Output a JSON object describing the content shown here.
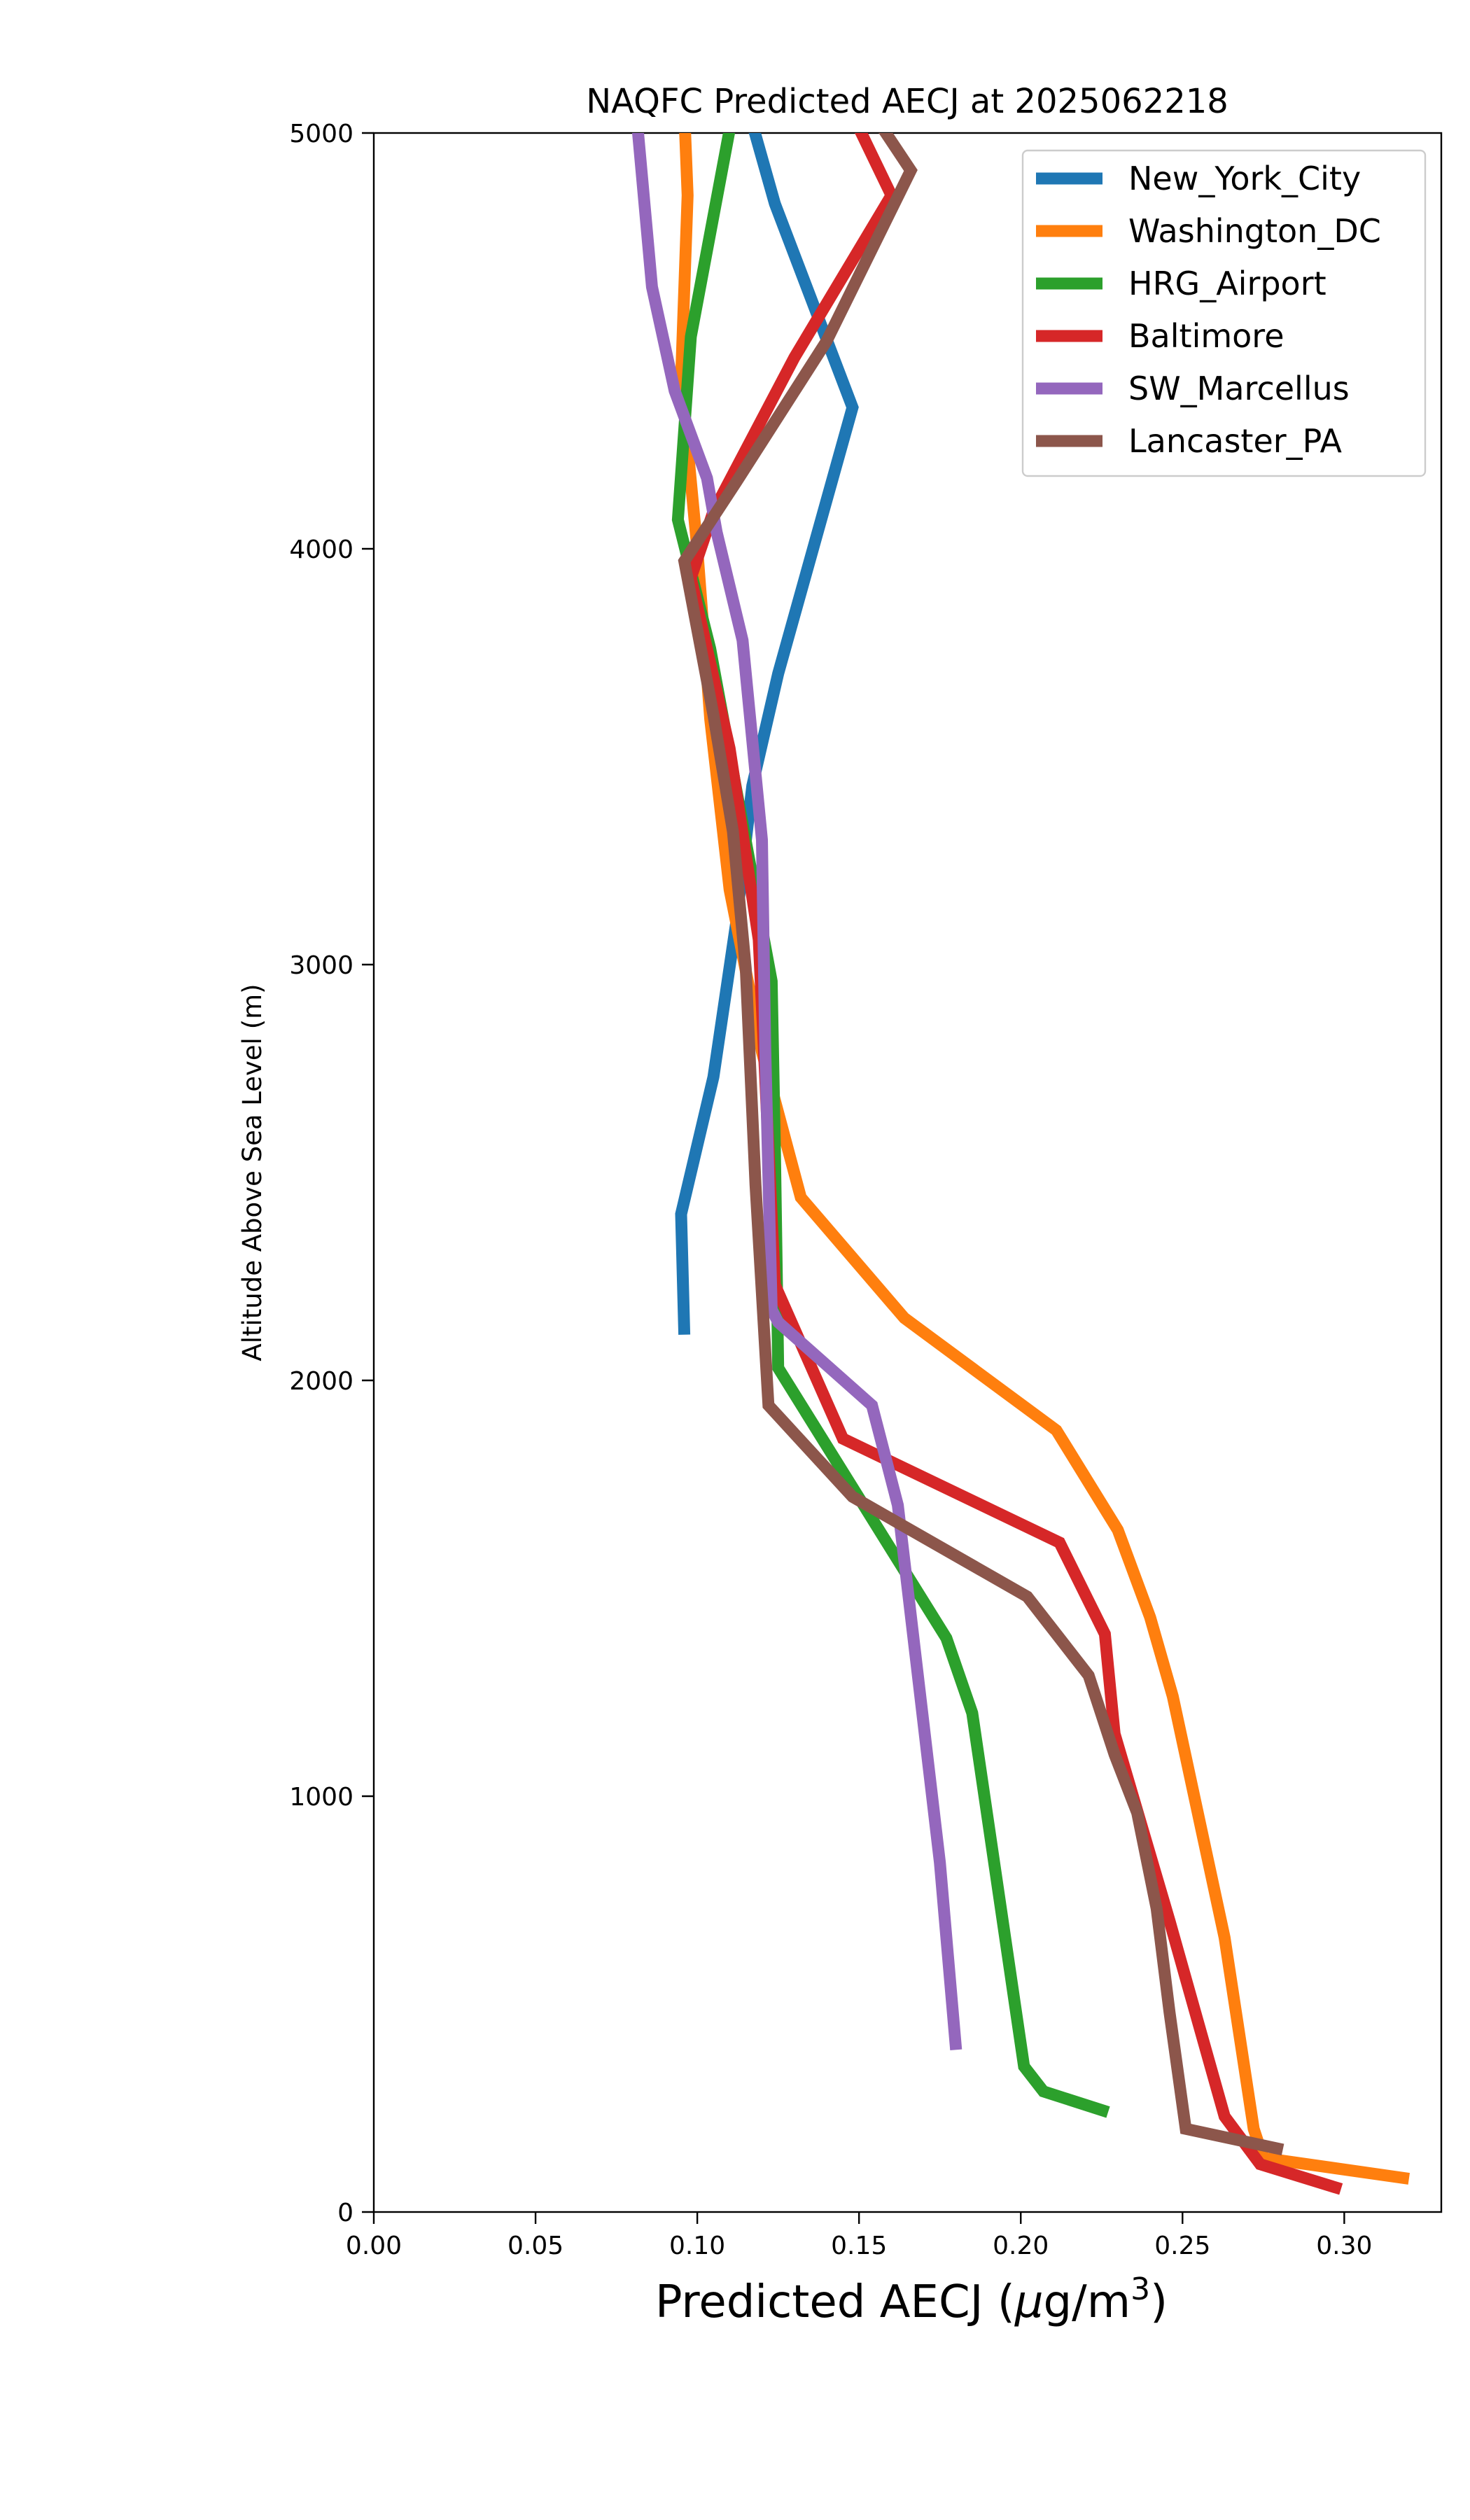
{
  "chart_data": {
    "type": "line",
    "title": "NAQFC Predicted AECJ at 2025062218",
    "xlabel_parts": [
      "Predicted AECJ (",
      "μ",
      "g/m",
      "3",
      ")"
    ],
    "ylabel": "Altitude Above Sea Level (m)",
    "xlim": [
      0.0,
      0.33
    ],
    "ylim": [
      0,
      5000
    ],
    "xticks": [
      {
        "value": 0.0,
        "label": "0.00"
      },
      {
        "value": 0.05,
        "label": "0.05"
      },
      {
        "value": 0.1,
        "label": "0.10"
      },
      {
        "value": 0.15,
        "label": "0.15"
      },
      {
        "value": 0.2,
        "label": "0.20"
      },
      {
        "value": 0.25,
        "label": "0.25"
      },
      {
        "value": 0.3,
        "label": "0.30"
      }
    ],
    "yticks": [
      {
        "value": 0,
        "label": "0"
      },
      {
        "value": 1000,
        "label": "1000"
      },
      {
        "value": 2000,
        "label": "2000"
      },
      {
        "value": 3000,
        "label": "3000"
      },
      {
        "value": 4000,
        "label": "4000"
      },
      {
        "value": 5000,
        "label": "5000"
      }
    ],
    "grid": false,
    "legend_position": "top-right",
    "series": [
      {
        "name": "New_York_City",
        "color": "#1f77b4",
        "points": [
          [
            0.096,
            2110
          ],
          [
            0.095,
            2400
          ],
          [
            0.105,
            2730
          ],
          [
            0.112,
            3100
          ],
          [
            0.117,
            3430
          ],
          [
            0.125,
            3700
          ],
          [
            0.148,
            4340
          ],
          [
            0.124,
            4830
          ],
          [
            0.116,
            5050
          ]
        ]
      },
      {
        "name": "Washington_DC",
        "color": "#ff7f0e",
        "points": [
          [
            0.32,
            80
          ],
          [
            0.275,
            130
          ],
          [
            0.272,
            200
          ],
          [
            0.263,
            660
          ],
          [
            0.247,
            1240
          ],
          [
            0.24,
            1430
          ],
          [
            0.23,
            1640
          ],
          [
            0.211,
            1880
          ],
          [
            0.164,
            2150
          ],
          [
            0.132,
            2440
          ],
          [
            0.12,
            2790
          ],
          [
            0.11,
            3180
          ],
          [
            0.104,
            3590
          ],
          [
            0.1,
            4000
          ],
          [
            0.095,
            4410
          ],
          [
            0.097,
            4850
          ],
          [
            0.096,
            5050
          ]
        ]
      },
      {
        "name": "HRG_Airport",
        "color": "#2ca02c",
        "points": [
          [
            0.227,
            240
          ],
          [
            0.207,
            290
          ],
          [
            0.201,
            350
          ],
          [
            0.185,
            1200
          ],
          [
            0.177,
            1380
          ],
          [
            0.125,
            2030
          ],
          [
            0.124,
            2560
          ],
          [
            0.123,
            2960
          ],
          [
            0.104,
            3760
          ],
          [
            0.094,
            4070
          ],
          [
            0.098,
            4510
          ],
          [
            0.111,
            5050
          ]
        ]
      },
      {
        "name": "Baltimore",
        "color": "#d62728",
        "points": [
          [
            0.299,
            55
          ],
          [
            0.274,
            115
          ],
          [
            0.263,
            230
          ],
          [
            0.246,
            700
          ],
          [
            0.229,
            1150
          ],
          [
            0.226,
            1390
          ],
          [
            0.212,
            1610
          ],
          [
            0.145,
            1860
          ],
          [
            0.124,
            2230
          ],
          [
            0.119,
            3060
          ],
          [
            0.11,
            3520
          ],
          [
            0.098,
            3930
          ],
          [
            0.105,
            4090
          ],
          [
            0.13,
            4460
          ],
          [
            0.16,
            4850
          ],
          [
            0.147,
            5060
          ]
        ]
      },
      {
        "name": "SW_Marcellus",
        "color": "#9467bd",
        "points": [
          [
            0.18,
            390
          ],
          [
            0.175,
            840
          ],
          [
            0.162,
            1700
          ],
          [
            0.154,
            1940
          ],
          [
            0.125,
            2140
          ],
          [
            0.123,
            2170
          ],
          [
            0.121,
            2800
          ],
          [
            0.12,
            3300
          ],
          [
            0.114,
            3780
          ],
          [
            0.106,
            4040
          ],
          [
            0.103,
            4170
          ],
          [
            0.093,
            4380
          ],
          [
            0.086,
            4630
          ],
          [
            0.081,
            5060
          ]
        ]
      },
      {
        "name": "Lancaster_PA",
        "color": "#8c564b",
        "points": [
          [
            0.281,
            150
          ],
          [
            0.251,
            200
          ],
          [
            0.246,
            480
          ],
          [
            0.242,
            730
          ],
          [
            0.236,
            960
          ],
          [
            0.229,
            1100
          ],
          [
            0.221,
            1290
          ],
          [
            0.202,
            1480
          ],
          [
            0.148,
            1720
          ],
          [
            0.122,
            1940
          ],
          [
            0.118,
            2470
          ],
          [
            0.115,
            2990
          ],
          [
            0.111,
            3320
          ],
          [
            0.105,
            3600
          ],
          [
            0.096,
            3970
          ],
          [
            0.112,
            4160
          ],
          [
            0.14,
            4500
          ],
          [
            0.166,
            4910
          ],
          [
            0.154,
            5050
          ]
        ]
      }
    ]
  }
}
